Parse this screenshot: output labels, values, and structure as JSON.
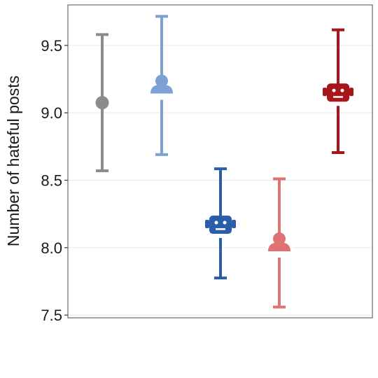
{
  "chart_data": {
    "type": "scatter",
    "ylabel": "Number of hateful posts",
    "xlabel": "",
    "ylim": [
      7.48,
      9.8
    ],
    "yticks": [
      7.5,
      8.0,
      8.5,
      9.0,
      9.5
    ],
    "ytick_labels": [
      "7.5",
      "8.0",
      "8.5",
      "9.0",
      "9.5"
    ],
    "grid": true,
    "points": [
      {
        "marker": "circle",
        "color": "#8c8c8c",
        "y": 9.075,
        "low": 8.57,
        "high": 9.58
      },
      {
        "marker": "person-icon",
        "color": "#7ba2d3",
        "y": 9.2,
        "low": 8.69,
        "high": 9.715
      },
      {
        "marker": "robot-icon",
        "color": "#2a5ea8",
        "y": 8.17,
        "low": 7.775,
        "high": 8.585
      },
      {
        "marker": "person-icon",
        "color": "#e07273",
        "y": 8.03,
        "low": 7.56,
        "high": 8.51
      },
      {
        "marker": "robot-icon",
        "color": "#a8151b",
        "y": 9.15,
        "low": 8.705,
        "high": 9.615
      }
    ]
  }
}
